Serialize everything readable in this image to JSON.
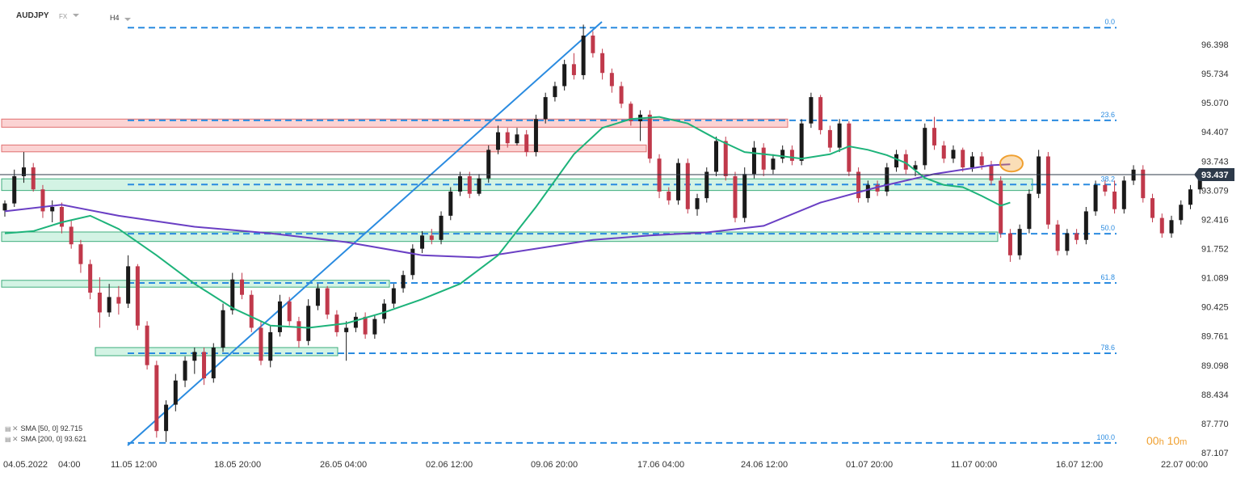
{
  "header": {
    "symbol": "AUDJPY",
    "type": "FX",
    "timeframe": "H4"
  },
  "legend": [
    {
      "label": "SMA [50, 0]",
      "value": "92.715",
      "color": "#1db37a"
    },
    {
      "label": "SMA [200, 0]",
      "value": "93.621",
      "color": "#6a3fc4"
    }
  ],
  "timer": {
    "value": "00h 10m",
    "h": "00",
    "h_unit": "h",
    "m": "10",
    "m_unit": "m"
  },
  "colors": {
    "bull": "#1a1a1a",
    "bear": "#c0394b",
    "sma50": "#1db37a",
    "sma200": "#6a3fc4",
    "trendline": "#2a8be0",
    "fib": "#2a8be0",
    "resistance_fill": "#fbd3d3",
    "resistance_border": "#e07070",
    "support_fill": "#d3f3e4",
    "support_border": "#3fae7d",
    "price_tag": "#2d3a4a",
    "marker": "#f0a030"
  },
  "chart_data": {
    "type": "candlestick",
    "symbol": "AUDJPY",
    "timeframe": "H4",
    "ylim": [
      86.95,
      97.1
    ],
    "y_ticks": [
      "96.398",
      "95.734",
      "95.070",
      "94.407",
      "93.743",
      "93.079",
      "92.416",
      "91.752",
      "91.089",
      "90.425",
      "89.761",
      "89.098",
      "88.434",
      "87.770",
      "87.107"
    ],
    "x_ticks": [
      "04.05.2022",
      "04:00",
      "11.05 12:00",
      "18.05 20:00",
      "26.05 04:00",
      "02.06 12:00",
      "09.06 20:00",
      "17.06 04:00",
      "24.06 12:00",
      "01.07 20:00",
      "11.07 00:00",
      "16.07 12:00",
      "22.07 00:00"
    ],
    "current_price": "93.437",
    "fibonacci": [
      {
        "level": "0.0",
        "price": 96.78
      },
      {
        "level": "23.6",
        "price": 94.67
      },
      {
        "level": "38.2",
        "price": 93.21
      },
      {
        "level": "50.0",
        "price": 92.09
      },
      {
        "level": "61.8",
        "price": 90.97
      },
      {
        "level": "78.6",
        "price": 89.37
      },
      {
        "level": "100.0",
        "price": 87.33
      }
    ],
    "zones": [
      {
        "kind": "resistance",
        "top": 94.7,
        "bottom": 94.57,
        "from": "04.05.2022",
        "to": "24.06"
      },
      {
        "kind": "resistance",
        "top": 94.11,
        "bottom": 94.01,
        "from": "04.05.2022",
        "to": "13.06"
      },
      {
        "kind": "support",
        "top": 93.34,
        "bottom": 93.13,
        "from": "04.05.2022",
        "to": "13.07"
      },
      {
        "kind": "support",
        "top": 92.13,
        "bottom": 91.97,
        "from": "04.05.2022",
        "to": "11.07"
      },
      {
        "kind": "support",
        "top": 91.03,
        "bottom": 90.93,
        "from": "04.05.2022",
        "to": "31.05"
      },
      {
        "kind": "support",
        "top": 89.5,
        "bottom": 89.37,
        "from": "10.05",
        "to": "27.05"
      }
    ],
    "trendline": {
      "from": [
        "12.05",
        87.35
      ],
      "to": [
        "09.06",
        96.86
      ]
    },
    "sma50": [
      [
        0,
        92.1
      ],
      [
        3,
        92.15
      ],
      [
        6,
        92.35
      ],
      [
        9,
        92.5
      ],
      [
        12,
        92.2
      ],
      [
        16,
        91.6
      ],
      [
        20,
        90.95
      ],
      [
        24,
        90.4
      ],
      [
        28,
        90.0
      ],
      [
        32,
        89.95
      ],
      [
        36,
        90.05
      ],
      [
        40,
        90.3
      ],
      [
        44,
        90.6
      ],
      [
        48,
        90.95
      ],
      [
        52,
        91.6
      ],
      [
        56,
        92.7
      ],
      [
        60,
        93.9
      ],
      [
        63,
        94.5
      ],
      [
        66,
        94.7
      ],
      [
        69,
        94.75
      ],
      [
        72,
        94.6
      ],
      [
        75,
        94.25
      ],
      [
        78,
        93.95
      ],
      [
        81,
        93.88
      ],
      [
        84,
        93.8
      ],
      [
        87,
        93.9
      ],
      [
        89,
        94.08
      ],
      [
        91,
        94.0
      ],
      [
        93,
        93.88
      ],
      [
        95,
        93.7
      ],
      [
        97,
        93.36
      ],
      [
        99,
        93.2
      ],
      [
        101,
        93.15
      ],
      [
        103,
        92.95
      ],
      [
        105,
        92.73
      ],
      [
        106,
        92.8
      ]
    ],
    "sma200": [
      [
        0,
        92.6
      ],
      [
        6,
        92.75
      ],
      [
        12,
        92.5
      ],
      [
        20,
        92.25
      ],
      [
        28,
        92.1
      ],
      [
        36,
        91.9
      ],
      [
        44,
        91.6
      ],
      [
        50,
        91.55
      ],
      [
        56,
        91.75
      ],
      [
        62,
        91.95
      ],
      [
        68,
        92.05
      ],
      [
        74,
        92.12
      ],
      [
        80,
        92.27
      ],
      [
        86,
        92.8
      ],
      [
        92,
        93.15
      ],
      [
        98,
        93.45
      ],
      [
        104,
        93.65
      ],
      [
        106,
        93.67
      ]
    ],
    "candles": [
      {
        "o": 92.62,
        "h": 92.85,
        "l": 92.48,
        "c": 92.78
      },
      {
        "o": 92.78,
        "h": 93.55,
        "l": 92.7,
        "c": 93.4
      },
      {
        "o": 93.4,
        "h": 93.95,
        "l": 93.25,
        "c": 93.6
      },
      {
        "o": 93.6,
        "h": 93.7,
        "l": 93.05,
        "c": 93.1
      },
      {
        "o": 93.1,
        "h": 93.2,
        "l": 92.45,
        "c": 92.6
      },
      {
        "o": 92.6,
        "h": 92.85,
        "l": 92.35,
        "c": 92.7
      },
      {
        "o": 92.7,
        "h": 92.8,
        "l": 92.1,
        "c": 92.25
      },
      {
        "o": 92.25,
        "h": 92.4,
        "l": 91.75,
        "c": 91.85
      },
      {
        "o": 91.85,
        "h": 91.95,
        "l": 91.2,
        "c": 91.4
      },
      {
        "o": 91.4,
        "h": 91.5,
        "l": 90.6,
        "c": 90.75
      },
      {
        "o": 90.75,
        "h": 91.1,
        "l": 89.95,
        "c": 90.3
      },
      {
        "o": 90.3,
        "h": 90.95,
        "l": 90.2,
        "c": 90.65
      },
      {
        "o": 90.65,
        "h": 90.9,
        "l": 90.25,
        "c": 90.5
      },
      {
        "o": 90.5,
        "h": 91.6,
        "l": 90.4,
        "c": 91.35
      },
      {
        "o": 91.35,
        "h": 91.4,
        "l": 89.9,
        "c": 90.0
      },
      {
        "o": 90.0,
        "h": 90.1,
        "l": 89.0,
        "c": 89.1
      },
      {
        "o": 89.1,
        "h": 89.2,
        "l": 87.45,
        "c": 87.6
      },
      {
        "o": 87.6,
        "h": 88.3,
        "l": 87.35,
        "c": 88.2
      },
      {
        "o": 88.2,
        "h": 88.9,
        "l": 88.05,
        "c": 88.75
      },
      {
        "o": 88.75,
        "h": 89.3,
        "l": 88.6,
        "c": 89.2
      },
      {
        "o": 89.2,
        "h": 89.5,
        "l": 88.9,
        "c": 89.4
      },
      {
        "o": 89.4,
        "h": 89.5,
        "l": 88.65,
        "c": 88.8
      },
      {
        "o": 88.8,
        "h": 89.6,
        "l": 88.7,
        "c": 89.5
      },
      {
        "o": 89.5,
        "h": 90.5,
        "l": 89.4,
        "c": 90.35
      },
      {
        "o": 90.35,
        "h": 91.2,
        "l": 90.25,
        "c": 91.05
      },
      {
        "o": 91.05,
        "h": 91.2,
        "l": 90.6,
        "c": 90.7
      },
      {
        "o": 90.7,
        "h": 90.8,
        "l": 89.85,
        "c": 89.95
      },
      {
        "o": 89.95,
        "h": 90.1,
        "l": 89.1,
        "c": 89.2
      },
      {
        "o": 89.2,
        "h": 90.0,
        "l": 89.05,
        "c": 89.85
      },
      {
        "o": 89.85,
        "h": 90.7,
        "l": 89.75,
        "c": 90.55
      },
      {
        "o": 90.55,
        "h": 90.65,
        "l": 90.0,
        "c": 90.1
      },
      {
        "o": 90.1,
        "h": 90.2,
        "l": 89.5,
        "c": 89.65
      },
      {
        "o": 89.65,
        "h": 90.6,
        "l": 89.55,
        "c": 90.45
      },
      {
        "o": 90.45,
        "h": 90.95,
        "l": 90.35,
        "c": 90.85
      },
      {
        "o": 90.85,
        "h": 90.9,
        "l": 90.15,
        "c": 90.25
      },
      {
        "o": 90.25,
        "h": 90.35,
        "l": 89.75,
        "c": 89.85
      },
      {
        "o": 89.85,
        "h": 90.1,
        "l": 89.2,
        "c": 89.95
      },
      {
        "o": 89.95,
        "h": 90.3,
        "l": 89.85,
        "c": 90.2
      },
      {
        "o": 90.2,
        "h": 90.3,
        "l": 89.7,
        "c": 89.8
      },
      {
        "o": 89.8,
        "h": 90.25,
        "l": 89.7,
        "c": 90.15
      },
      {
        "o": 90.15,
        "h": 90.6,
        "l": 90.05,
        "c": 90.5
      },
      {
        "o": 90.5,
        "h": 90.95,
        "l": 90.4,
        "c": 90.85
      },
      {
        "o": 90.85,
        "h": 91.25,
        "l": 90.75,
        "c": 91.15
      },
      {
        "o": 91.15,
        "h": 91.85,
        "l": 91.05,
        "c": 91.75
      },
      {
        "o": 91.75,
        "h": 92.15,
        "l": 91.65,
        "c": 92.05
      },
      {
        "o": 92.05,
        "h": 92.2,
        "l": 91.85,
        "c": 91.95
      },
      {
        "o": 91.95,
        "h": 92.6,
        "l": 91.85,
        "c": 92.5
      },
      {
        "o": 92.5,
        "h": 93.15,
        "l": 92.4,
        "c": 93.05
      },
      {
        "o": 93.05,
        "h": 93.5,
        "l": 92.95,
        "c": 93.4
      },
      {
        "o": 93.4,
        "h": 93.5,
        "l": 92.9,
        "c": 93.0
      },
      {
        "o": 93.0,
        "h": 93.45,
        "l": 92.95,
        "c": 93.35
      },
      {
        "o": 93.35,
        "h": 94.1,
        "l": 93.25,
        "c": 94.0
      },
      {
        "o": 94.0,
        "h": 94.55,
        "l": 93.9,
        "c": 94.4
      },
      {
        "o": 94.4,
        "h": 94.5,
        "l": 94.05,
        "c": 94.15
      },
      {
        "o": 94.15,
        "h": 94.5,
        "l": 94.1,
        "c": 94.35
      },
      {
        "o": 94.35,
        "h": 94.45,
        "l": 93.85,
        "c": 93.95
      },
      {
        "o": 93.95,
        "h": 94.8,
        "l": 93.85,
        "c": 94.7
      },
      {
        "o": 94.7,
        "h": 95.3,
        "l": 94.6,
        "c": 95.2
      },
      {
        "o": 95.2,
        "h": 95.55,
        "l": 95.1,
        "c": 95.45
      },
      {
        "o": 95.45,
        "h": 96.05,
        "l": 95.35,
        "c": 95.95
      },
      {
        "o": 95.95,
        "h": 96.2,
        "l": 95.6,
        "c": 95.7
      },
      {
        "o": 95.7,
        "h": 96.85,
        "l": 95.6,
        "c": 96.6
      },
      {
        "o": 96.6,
        "h": 96.7,
        "l": 96.1,
        "c": 96.2
      },
      {
        "o": 96.2,
        "h": 96.3,
        "l": 95.6,
        "c": 95.75
      },
      {
        "o": 95.75,
        "h": 95.85,
        "l": 95.3,
        "c": 95.45
      },
      {
        "o": 95.45,
        "h": 95.55,
        "l": 94.95,
        "c": 95.05
      },
      {
        "o": 95.05,
        "h": 95.1,
        "l": 94.55,
        "c": 94.65
      },
      {
        "o": 94.65,
        "h": 94.9,
        "l": 94.2,
        "c": 94.8
      },
      {
        "o": 94.8,
        "h": 94.9,
        "l": 93.7,
        "c": 93.8
      },
      {
        "o": 93.8,
        "h": 93.9,
        "l": 92.9,
        "c": 93.05
      },
      {
        "o": 93.05,
        "h": 93.15,
        "l": 92.75,
        "c": 92.85
      },
      {
        "o": 92.85,
        "h": 93.8,
        "l": 92.75,
        "c": 93.7
      },
      {
        "o": 93.7,
        "h": 93.8,
        "l": 92.55,
        "c": 92.65
      },
      {
        "o": 92.65,
        "h": 93.0,
        "l": 92.5,
        "c": 92.9
      },
      {
        "o": 92.9,
        "h": 93.6,
        "l": 92.8,
        "c": 93.5
      },
      {
        "o": 93.5,
        "h": 94.3,
        "l": 93.4,
        "c": 94.2
      },
      {
        "o": 94.2,
        "h": 94.3,
        "l": 93.3,
        "c": 93.4
      },
      {
        "o": 93.4,
        "h": 93.5,
        "l": 92.35,
        "c": 92.45
      },
      {
        "o": 92.45,
        "h": 93.6,
        "l": 92.35,
        "c": 93.45
      },
      {
        "o": 93.45,
        "h": 94.2,
        "l": 93.35,
        "c": 94.05
      },
      {
        "o": 94.05,
        "h": 94.15,
        "l": 93.4,
        "c": 93.55
      },
      {
        "o": 93.55,
        "h": 93.9,
        "l": 93.45,
        "c": 93.8
      },
      {
        "o": 93.8,
        "h": 94.1,
        "l": 93.7,
        "c": 94.0
      },
      {
        "o": 94.0,
        "h": 94.1,
        "l": 93.65,
        "c": 93.75
      },
      {
        "o": 93.75,
        "h": 94.7,
        "l": 93.65,
        "c": 94.6
      },
      {
        "o": 94.6,
        "h": 95.3,
        "l": 94.5,
        "c": 95.2
      },
      {
        "o": 95.2,
        "h": 95.25,
        "l": 94.35,
        "c": 94.45
      },
      {
        "o": 94.45,
        "h": 94.55,
        "l": 93.95,
        "c": 94.05
      },
      {
        "o": 94.05,
        "h": 94.7,
        "l": 93.95,
        "c": 94.6
      },
      {
        "o": 94.6,
        "h": 94.65,
        "l": 93.4,
        "c": 93.5
      },
      {
        "o": 93.5,
        "h": 93.6,
        "l": 92.8,
        "c": 92.9
      },
      {
        "o": 92.9,
        "h": 93.3,
        "l": 92.8,
        "c": 93.2
      },
      {
        "o": 93.2,
        "h": 93.3,
        "l": 92.95,
        "c": 93.05
      },
      {
        "o": 93.05,
        "h": 93.7,
        "l": 92.95,
        "c": 93.6
      },
      {
        "o": 93.6,
        "h": 94.0,
        "l": 93.5,
        "c": 93.9
      },
      {
        "o": 93.9,
        "h": 94.0,
        "l": 93.45,
        "c": 93.55
      },
      {
        "o": 93.55,
        "h": 93.75,
        "l": 93.4,
        "c": 93.65
      },
      {
        "o": 93.65,
        "h": 94.6,
        "l": 93.55,
        "c": 94.5
      },
      {
        "o": 94.5,
        "h": 94.75,
        "l": 94.0,
        "c": 94.1
      },
      {
        "o": 94.1,
        "h": 94.2,
        "l": 93.7,
        "c": 93.8
      },
      {
        "o": 93.8,
        "h": 94.1,
        "l": 93.7,
        "c": 94.0
      },
      {
        "o": 94.0,
        "h": 94.05,
        "l": 93.5,
        "c": 93.6
      },
      {
        "o": 93.6,
        "h": 93.95,
        "l": 93.5,
        "c": 93.85
      },
      {
        "o": 93.85,
        "h": 93.95,
        "l": 93.55,
        "c": 93.65
      },
      {
        "o": 93.65,
        "h": 93.75,
        "l": 93.2,
        "c": 93.3
      },
      {
        "o": 93.3,
        "h": 93.4,
        "l": 92.0,
        "c": 92.1
      },
      {
        "o": 92.1,
        "h": 92.2,
        "l": 91.45,
        "c": 91.6
      },
      {
        "o": 91.6,
        "h": 92.3,
        "l": 91.5,
        "c": 92.2
      },
      {
        "o": 92.2,
        "h": 93.1,
        "l": 92.1,
        "c": 93.0
      },
      {
        "o": 93.0,
        "h": 94.0,
        "l": 92.9,
        "c": 93.85
      },
      {
        "o": 93.85,
        "h": 93.95,
        "l": 92.2,
        "c": 92.3
      },
      {
        "o": 92.3,
        "h": 92.4,
        "l": 91.6,
        "c": 91.7
      },
      {
        "o": 91.7,
        "h": 92.2,
        "l": 91.6,
        "c": 92.1
      },
      {
        "o": 92.1,
        "h": 92.2,
        "l": 91.85,
        "c": 91.95
      },
      {
        "o": 91.95,
        "h": 92.7,
        "l": 91.85,
        "c": 92.6
      },
      {
        "o": 92.6,
        "h": 93.3,
        "l": 92.5,
        "c": 93.2
      },
      {
        "o": 93.2,
        "h": 93.3,
        "l": 92.95,
        "c": 93.05
      },
      {
        "o": 93.05,
        "h": 93.3,
        "l": 92.55,
        "c": 92.65
      },
      {
        "o": 92.65,
        "h": 93.4,
        "l": 92.55,
        "c": 93.3
      },
      {
        "o": 93.3,
        "h": 93.65,
        "l": 93.2,
        "c": 93.55
      },
      {
        "o": 93.55,
        "h": 93.65,
        "l": 92.8,
        "c": 92.9
      },
      {
        "o": 92.9,
        "h": 93.0,
        "l": 92.35,
        "c": 92.45
      },
      {
        "o": 92.45,
        "h": 92.55,
        "l": 92.0,
        "c": 92.1
      },
      {
        "o": 92.1,
        "h": 92.5,
        "l": 92.0,
        "c": 92.4
      },
      {
        "o": 92.4,
        "h": 92.85,
        "l": 92.3,
        "c": 92.75
      },
      {
        "o": 92.75,
        "h": 93.2,
        "l": 92.65,
        "c": 93.1
      },
      {
        "o": 93.1,
        "h": 93.45,
        "l": 93.0,
        "c": 93.4
      }
    ]
  }
}
